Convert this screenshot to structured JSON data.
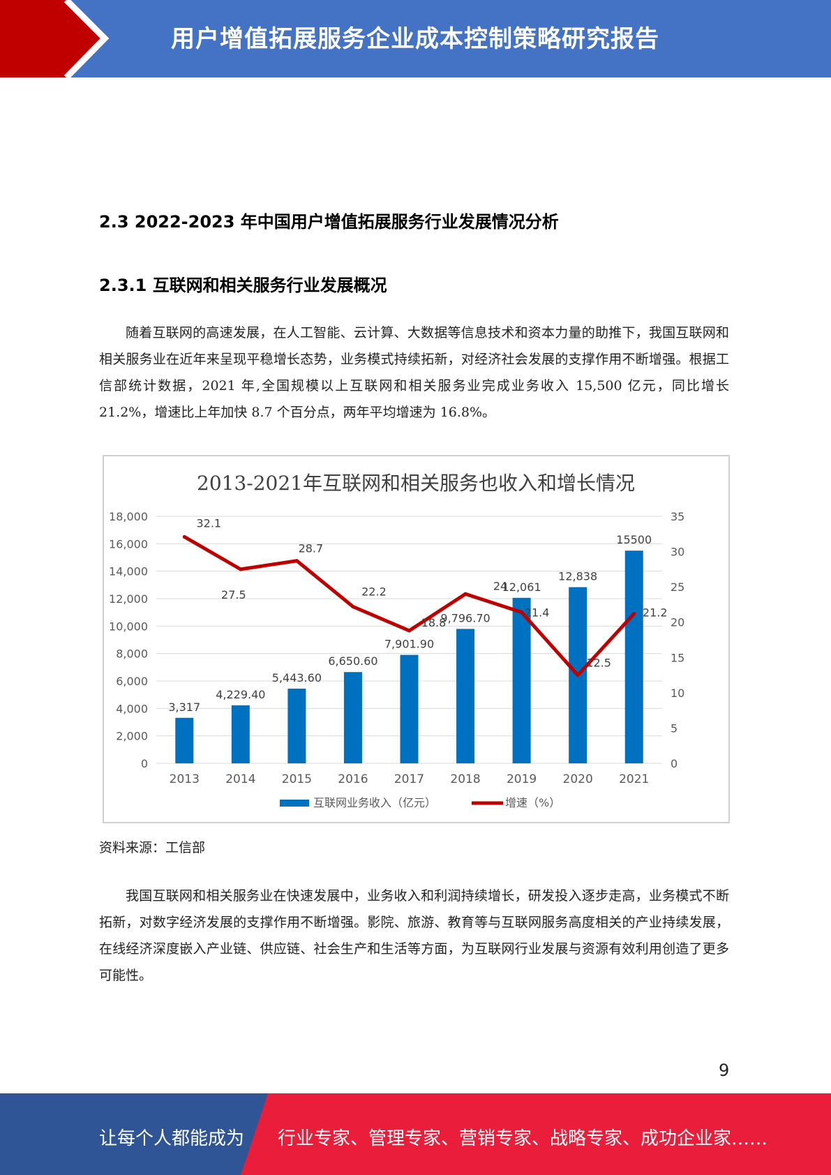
{
  "header": {
    "title": "用户增值拓展服务企业成本控制策略研究报告"
  },
  "section": {
    "heading": "2.3 2022-2023 年中国用户增值拓展服务行业发展情况分析",
    "subheading": "2.3.1 互联网和相关服务行业发展概况"
  },
  "paragraphs": {
    "p1": "随着互联网的高速发展，在人工智能、云计算、大数据等信息技术和资本力量的助推下，我国互联网和相关服务业在近年来呈现平稳增长态势，业务模式持续拓新，对经济社会发展的支撑作用不断增强。根据工信部统计数据，2021 年,全国规模以上互联网和相关服务业完成业务收入 15,500 亿元，同比增长 21.2%，增速比上年加快 8.7 个百分点，两年平均增速为 16.8%。",
    "p2": "我国互联网和相关服务业在快速发展中，业务收入和利润持续增长，研发投入逐步走高，业务模式不断拓新，对数字经济发展的支撑作用不断增强。影院、旅游、教育等与互联网服务高度相关的产业持续发展，在线经济深度嵌入产业链、供应链、社会生产和生活等方面，为互联网行业发展与资源有效利用创造了更多可能性。"
  },
  "chart_data": {
    "type": "bar+line",
    "title": "2013-2021年互联网和相关服务也收入和增长情况",
    "categories": [
      "2013",
      "2014",
      "2015",
      "2016",
      "2017",
      "2018",
      "2019",
      "2020",
      "2021"
    ],
    "series": [
      {
        "name": "互联网业务收入（亿元）",
        "type": "bar",
        "axis": "left",
        "color": "#0070c0",
        "values": [
          3317,
          4229.4,
          5443.6,
          6650.6,
          7901.9,
          9796.7,
          12061,
          12838,
          15500
        ],
        "labels": [
          "3,317",
          "4,229.40",
          "5,443.60",
          "6,650.60",
          "7,901.90",
          "9,796.70",
          "12,061",
          "12,838",
          "15500"
        ]
      },
      {
        "name": "增速（%）",
        "type": "line",
        "axis": "right",
        "color": "#c00000",
        "values": [
          32.1,
          27.5,
          28.7,
          22.2,
          18.8,
          24,
          21.4,
          12.5,
          21.2
        ],
        "labels": [
          "32.1",
          "27.5",
          "28.7",
          "22.2",
          "18.8",
          "24",
          "21.4",
          "12.5",
          "21.2"
        ]
      }
    ],
    "yleft": {
      "min": 0,
      "max": 18000,
      "step": 2000,
      "ticks": [
        "0",
        "2,000",
        "4,000",
        "6,000",
        "8,000",
        "10,000",
        "12,000",
        "14,000",
        "16,000",
        "18,000"
      ]
    },
    "yright": {
      "min": 0,
      "max": 35,
      "step": 5,
      "ticks": [
        "0",
        "5",
        "10",
        "15",
        "20",
        "25",
        "30",
        "35"
      ]
    },
    "grid": true,
    "legend": "bottom"
  },
  "source": "资料来源：工信部",
  "page_number": "9",
  "footer": {
    "left": "让每个人都能成为",
    "right": "行业专家、管理专家、营销专家、战略专家、成功企业家……"
  },
  "colors": {
    "header_blue": "#4472c4",
    "header_red": "#c00000",
    "footer_blue": "#2f5597",
    "footer_red": "#ea1d3a"
  }
}
